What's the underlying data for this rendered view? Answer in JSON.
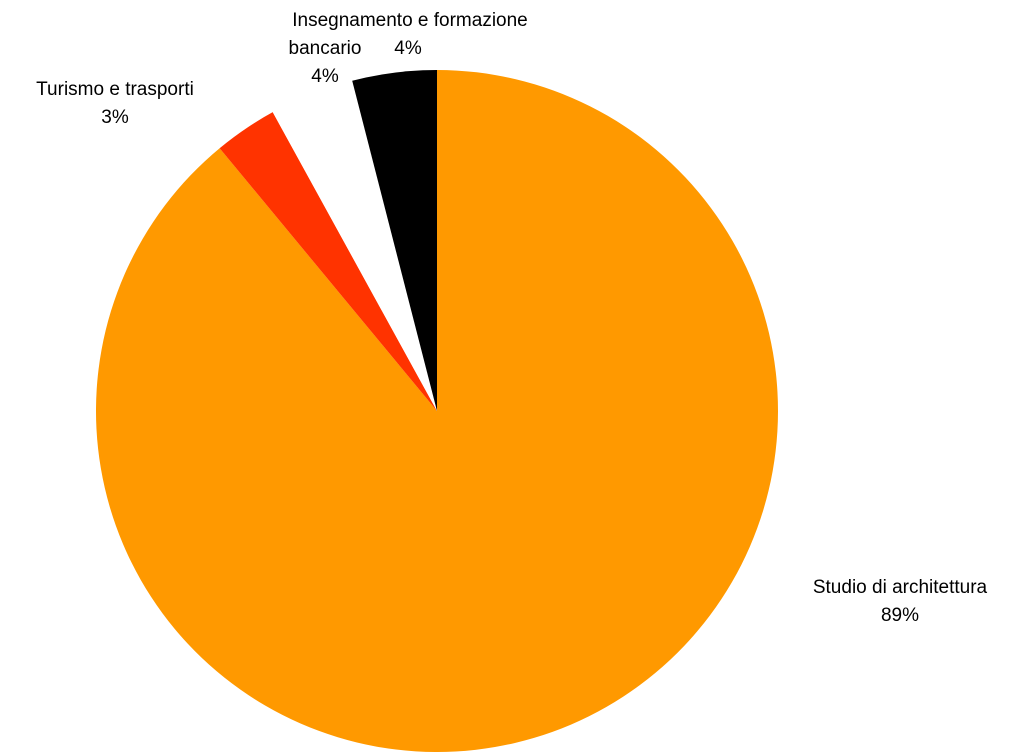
{
  "chart_data": {
    "type": "pie",
    "start_angle": "12 o'clock",
    "direction": "clockwise",
    "slices": [
      {
        "name": "Studio di architettura",
        "value": 89,
        "label": "89%",
        "color": "#FF9900"
      },
      {
        "name": "Turismo e trasporti",
        "value": 3,
        "label": "3%",
        "color": "#FF3300"
      },
      {
        "name": "Insegnamento e formazione",
        "value": 4,
        "label": "4%",
        "color": "#FFFFFF"
      },
      {
        "name": "bancario",
        "value": 4,
        "label": "4%",
        "color": "#000000"
      }
    ]
  }
}
